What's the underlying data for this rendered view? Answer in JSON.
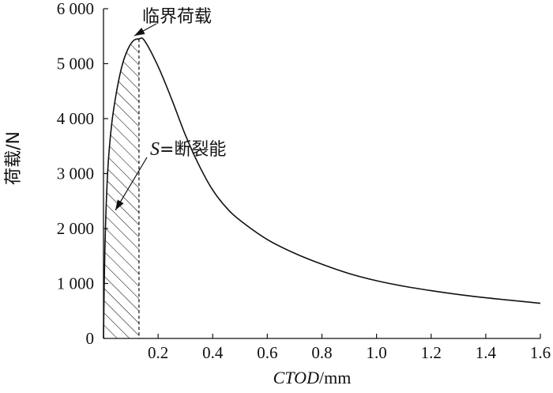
{
  "chart_data": {
    "type": "line",
    "title": "",
    "xlabel": {
      "italic": "CTOD",
      "unit": "/mm"
    },
    "ylabel": "荷载/N",
    "xlim": [
      0,
      1.6
    ],
    "ylim": [
      0,
      6000
    ],
    "x_ticks": [
      "0.2",
      "0.4",
      "0.6",
      "0.8",
      "1.0",
      "1.2",
      "1.4",
      "1.6"
    ],
    "y_ticks": [
      "0",
      "1 000",
      "2 000",
      "3 000",
      "4 000",
      "5 000",
      "6 000"
    ],
    "grid": false,
    "legend": "none",
    "critical_x": 0.13,
    "series": [
      {
        "x": [
          0,
          0.005,
          0.015,
          0.03,
          0.05,
          0.07,
          0.09,
          0.11,
          0.13,
          0.15,
          0.2,
          0.25,
          0.3,
          0.35,
          0.4,
          0.45,
          0.5,
          0.6,
          0.7,
          0.8,
          0.9,
          1.0,
          1.1,
          1.2,
          1.3,
          1.4,
          1.5,
          1.6
        ],
        "y": [
          0,
          1600,
          3000,
          3900,
          4550,
          5000,
          5270,
          5420,
          5450,
          5420,
          4950,
          4350,
          3700,
          3150,
          2700,
          2380,
          2150,
          1800,
          1550,
          1350,
          1180,
          1050,
          950,
          870,
          800,
          740,
          690,
          640
        ]
      }
    ],
    "annotations": [
      {
        "text": "临界荷载"
      },
      {
        "italic": "S",
        "text": "=断裂能"
      }
    ]
  }
}
